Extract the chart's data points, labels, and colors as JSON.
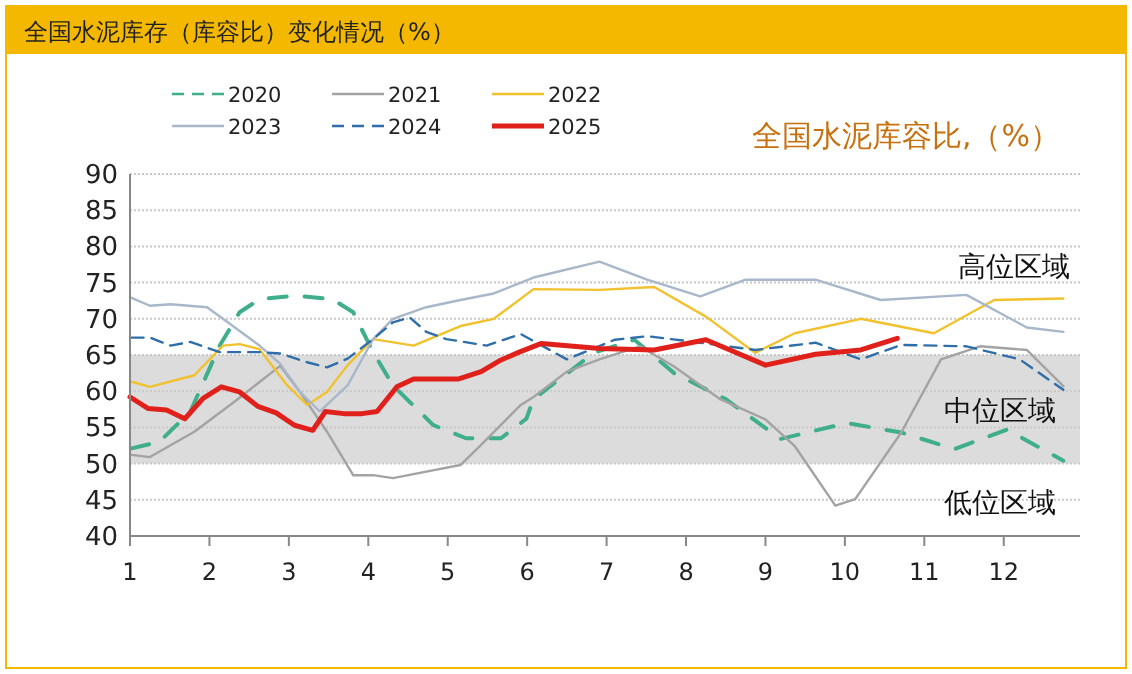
{
  "chart_data": {
    "type": "line",
    "title": "全国水泥库存（库容比）变化情况（%）",
    "subtitle": "全国水泥库容比,（%）",
    "annotations": [
      "高位区域",
      "中位区域",
      "低位区域"
    ],
    "xlim": [
      1,
      12.96
    ],
    "xticks": [
      1,
      2,
      3,
      4,
      5,
      6,
      7,
      8,
      9,
      10,
      11,
      12
    ],
    "ylim": [
      40,
      90
    ],
    "yticks": [
      40,
      45,
      50,
      55,
      60,
      65,
      70,
      75,
      80,
      85,
      90
    ],
    "grid": "y",
    "legend": "top left",
    "bands": [
      {
        "axis": "y",
        "from": 50,
        "to": 65,
        "color": "#dcdcdc"
      }
    ],
    "series": [
      {
        "name": "2020",
        "color": "#3fae8a",
        "line_style": "dashed",
        "x": [
          1.02,
          1.37,
          1.76,
          2.13,
          2.38,
          2.63,
          3.09,
          3.55,
          3.81,
          4.06,
          4.31,
          4.82,
          5.23,
          5.67,
          5.99,
          6.08,
          6.84,
          7.35,
          7.85,
          8.5,
          9.19,
          10.02,
          10.71,
          11.38,
          12.04,
          12.75
        ],
        "values": [
          52.1,
          53,
          57.2,
          66.3,
          70.9,
          72.7,
          73.2,
          72.7,
          70.9,
          65.4,
          60.8,
          55.3,
          53.5,
          53.5,
          56.2,
          58.9,
          65.3,
          67.1,
          62.5,
          58.9,
          53.4,
          55.6,
          54.3,
          52.0,
          54.7,
          50.4
        ]
      },
      {
        "name": "2021",
        "color": "#a3a3a3",
        "line_style": "solid",
        "x": [
          1.02,
          1.25,
          1.81,
          2.31,
          2.89,
          3.14,
          3.48,
          3.81,
          4.06,
          4.31,
          4.73,
          5.16,
          5.42,
          5.92,
          6.08,
          6.5,
          6.91,
          7.42,
          7.85,
          8.43,
          9.0,
          9.37,
          9.88,
          10.13,
          10.71,
          11.21,
          11.7,
          12.29,
          12.75
        ],
        "values": [
          51.2,
          50.9,
          54.4,
          58.5,
          63.5,
          59.9,
          54.4,
          48.4,
          48.4,
          48,
          48.9,
          49.8,
          52.6,
          58.1,
          59.2,
          62.7,
          64.4,
          66.2,
          63.4,
          58.9,
          56.1,
          52.4,
          44.2,
          45.1,
          54.3,
          64.4,
          66.2,
          65.7,
          60.7
        ]
      },
      {
        "name": "2022",
        "color": "#f2c12e",
        "line_style": "solid",
        "x": [
          1.02,
          1.25,
          1.81,
          2.17,
          2.38,
          2.63,
          2.98,
          3.23,
          3.48,
          3.74,
          4.06,
          4.57,
          5.16,
          5.58,
          6.08,
          6.91,
          7.6,
          8.25,
          8.87,
          9.37,
          10.2,
          11.12,
          11.88,
          12.75
        ],
        "values": [
          61.3,
          60.6,
          62.2,
          66.3,
          66.5,
          65.8,
          60.8,
          58.1,
          59.9,
          63.6,
          67.2,
          66.3,
          69,
          70,
          74.1,
          74.0,
          74.4,
          70.3,
          65.3,
          68.0,
          70.0,
          68.0,
          72.6,
          72.8
        ]
      },
      {
        "name": "2023",
        "color": "#a9b7ca",
        "line_style": "solid",
        "x": [
          1.02,
          1.25,
          1.51,
          1.97,
          2.17,
          2.63,
          2.89,
          3.14,
          3.39,
          3.74,
          4.06,
          4.31,
          4.73,
          5.16,
          5.58,
          6.08,
          6.91,
          7.51,
          8.18,
          8.75,
          9.63,
          10.45,
          11.53,
          12.29,
          12.75
        ],
        "values": [
          72.9,
          71.8,
          72,
          71.6,
          70,
          66.3,
          63.8,
          59.9,
          57.2,
          60.8,
          67.2,
          70,
          71.6,
          72.6,
          73.5,
          75.7,
          77.9,
          75.4,
          73.1,
          75.4,
          75.4,
          72.6,
          73.3,
          68.8,
          68.2
        ]
      },
      {
        "name": "2024",
        "color": "#2f6ea8",
        "line_style": "dashed",
        "x": [
          1.02,
          1.25,
          1.51,
          1.76,
          2.13,
          2.63,
          2.89,
          3.23,
          3.48,
          3.74,
          4.06,
          4.31,
          4.52,
          4.73,
          4.98,
          5.49,
          5.92,
          6.5,
          7.1,
          7.51,
          8.18,
          8.87,
          9.63,
          10.2,
          10.71,
          11.53,
          12.2,
          12.75
        ],
        "values": [
          67.4,
          67.4,
          66.3,
          66.8,
          65.4,
          65.4,
          65.2,
          64,
          63.3,
          64.5,
          67.2,
          69.5,
          70.2,
          68.2,
          67.2,
          66.3,
          67.9,
          64.4,
          67.1,
          67.6,
          66.7,
          65.7,
          66.7,
          64.4,
          66.4,
          66.2,
          64.4,
          60.2
        ]
      },
      {
        "name": "2025",
        "color": "#e0201b",
        "line_style": "solid",
        "x": [
          1,
          1.23,
          1.46,
          1.69,
          1.92,
          2.15,
          2.38,
          2.61,
          2.84,
          3.07,
          3.3,
          3.46,
          3.69,
          3.92,
          4.11,
          4.36,
          4.57,
          4.91,
          5.14,
          5.42,
          5.65,
          5.9,
          6.18,
          6.91,
          7.6,
          8.25,
          9.0,
          9.63,
          10.2,
          10.66
        ],
        "values": [
          59.2,
          57.6,
          57.4,
          56.2,
          59,
          60.6,
          59.9,
          57.9,
          57,
          55.3,
          54.6,
          57.2,
          56.9,
          56.9,
          57.2,
          60.6,
          61.7,
          61.7,
          61.7,
          62.7,
          64.2,
          65.4,
          66.6,
          65.9,
          65.7,
          67.1,
          63.6,
          65.1,
          65.7,
          67.3
        ]
      }
    ]
  }
}
